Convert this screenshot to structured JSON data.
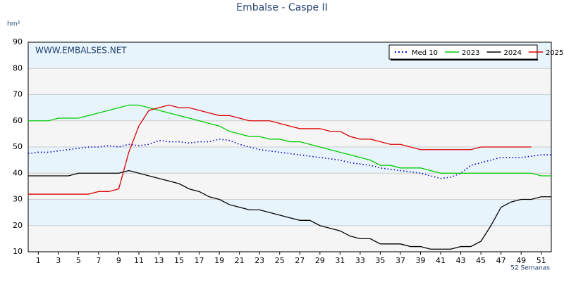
{
  "chart_data": {
    "type": "line",
    "title": "Embalse - Caspe II",
    "y_unit": "hm³",
    "x_label": "52 Semanas",
    "watermark": "WWW.EMBALSES.NET",
    "x": [
      0,
      1,
      2,
      3,
      4,
      5,
      6,
      7,
      8,
      9,
      10,
      11,
      12,
      13,
      14,
      15,
      16,
      17,
      18,
      19,
      20,
      21,
      22,
      23,
      24,
      25,
      26,
      27,
      28,
      29,
      30,
      31,
      32,
      33,
      34,
      35,
      36,
      37,
      38,
      39,
      40,
      41,
      42,
      43,
      44,
      45,
      46,
      47,
      48,
      49,
      50,
      51,
      52
    ],
    "xlim": [
      0,
      52
    ],
    "xticks": [
      1,
      3,
      5,
      7,
      9,
      11,
      13,
      15,
      17,
      19,
      21,
      23,
      25,
      27,
      29,
      31,
      33,
      35,
      37,
      39,
      41,
      43,
      45,
      47,
      49,
      51
    ],
    "ylim": [
      10,
      90
    ],
    "yticks": [
      10,
      20,
      30,
      40,
      50,
      60,
      70,
      80,
      90
    ],
    "grid": true,
    "legend": "top-right",
    "series": [
      {
        "name": "Med 10",
        "color": "#0000cc",
        "style": "dotted",
        "values": [
          47.5,
          48,
          48,
          48.5,
          49,
          49.5,
          50,
          50,
          50.5,
          50,
          51,
          50.5,
          51,
          52.5,
          52,
          52,
          51.5,
          52,
          52,
          53,
          52.5,
          51,
          50,
          49,
          48.5,
          48,
          47.5,
          47,
          46.5,
          46,
          45.5,
          45,
          44,
          43.5,
          43,
          42,
          41.5,
          41,
          40.5,
          40,
          39,
          38,
          38.5,
          40,
          43,
          44,
          45,
          46,
          46,
          46,
          46.5,
          47,
          47
        ]
      },
      {
        "name": "2023",
        "color": "#00cc00",
        "style": "solid",
        "values": [
          60,
          60,
          60,
          61,
          61,
          61,
          62,
          63,
          64,
          65,
          66,
          66,
          65,
          64,
          63,
          62,
          61,
          60,
          59,
          58,
          56,
          55,
          54,
          54,
          53,
          53,
          52,
          52,
          51,
          50,
          49,
          48,
          47,
          46,
          45,
          43,
          43,
          42,
          42,
          42,
          41,
          40,
          40,
          40,
          40,
          40,
          40,
          40,
          40,
          40,
          40,
          39,
          39
        ]
      },
      {
        "name": "2024",
        "color": "#000000",
        "style": "solid",
        "values": [
          39,
          39,
          39,
          39,
          39,
          40,
          40,
          40,
          40,
          40,
          41,
          40,
          39,
          38,
          37,
          36,
          34,
          33,
          31,
          30,
          28,
          27,
          26,
          26,
          25,
          24,
          23,
          22,
          22,
          20,
          19,
          18,
          16,
          15,
          15,
          13,
          13,
          13,
          12,
          12,
          11,
          11,
          11,
          12,
          12,
          14,
          20,
          27,
          29,
          30,
          30,
          31,
          31
        ]
      },
      {
        "name": "2025",
        "color": "#dd0000",
        "style": "solid",
        "values": [
          32,
          32,
          32,
          32,
          32,
          32,
          32,
          33,
          33,
          34,
          48,
          58,
          64,
          65,
          66,
          65,
          65,
          64,
          63,
          62,
          62,
          61,
          60,
          60,
          60,
          59,
          58,
          57,
          57,
          57,
          56,
          56,
          54,
          53,
          53,
          52,
          51,
          51,
          50,
          49,
          49,
          49,
          49,
          49,
          49,
          50,
          50,
          50,
          50,
          50,
          50,
          null,
          null
        ]
      }
    ]
  }
}
